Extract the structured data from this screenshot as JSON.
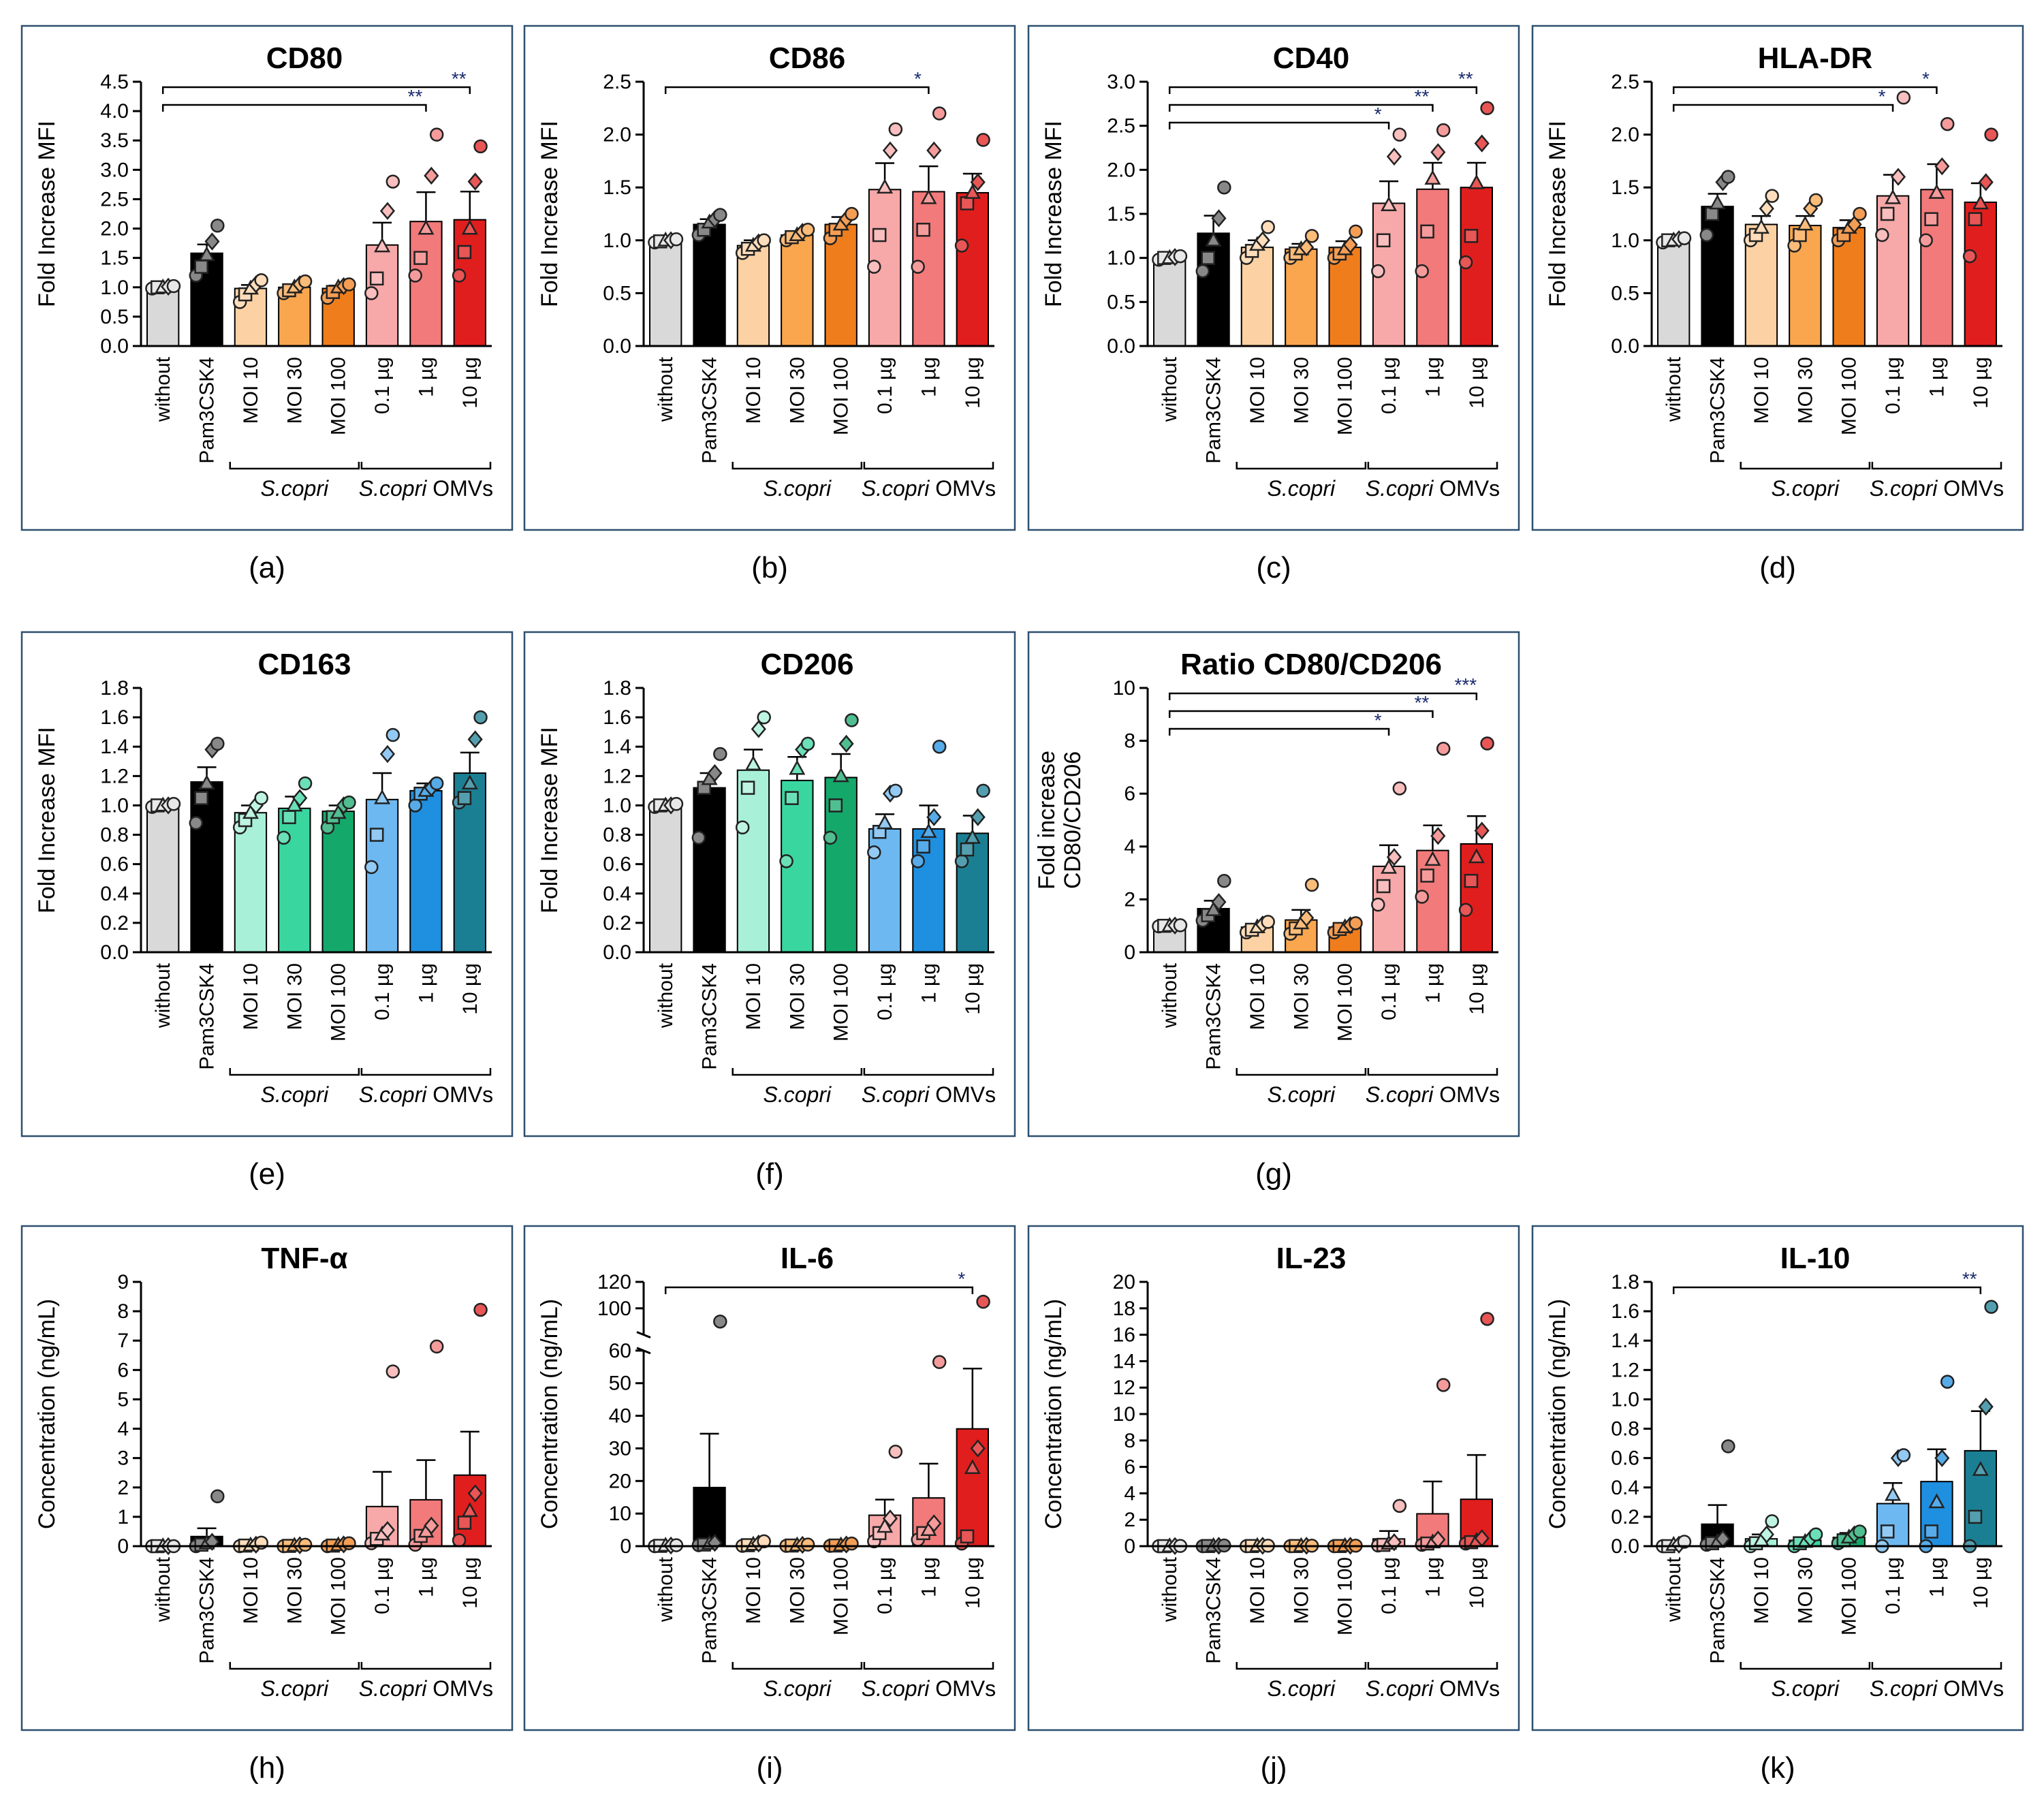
{
  "figure": {
    "categories": [
      "without",
      "Pam3CSK4",
      "MOI 10",
      "MOI 30",
      "MOI 100",
      "0.1 µg",
      "1 µg",
      "10 µg"
    ],
    "groups": [
      {
        "italic": "S.copri",
        "rest": ""
      },
      {
        "italic": "S.copri",
        "rest": " OMVs"
      }
    ]
  },
  "chart_data": [
    {
      "panel": "(a)",
      "type": "bar",
      "title": "CD80",
      "ylabel": [
        "Fold Increase MFI"
      ],
      "ylim": [
        0,
        4.5
      ],
      "yticks": [
        0,
        0.5,
        1.0,
        1.5,
        2.0,
        2.5,
        3.0,
        3.5,
        4.0,
        4.5
      ],
      "ytick_decimals": 1,
      "values": [
        1.0,
        1.58,
        0.98,
        1.0,
        0.98,
        1.72,
        2.12,
        2.15
      ],
      "errors": [
        0.02,
        0.15,
        0.06,
        0.04,
        0.05,
        0.38,
        0.5,
        0.48
      ],
      "colors": [
        "#d9d9d9",
        "#000000",
        "#fcd2a4",
        "#f9a64e",
        "#f07d1c",
        "#f7a8a8",
        "#f27a7a",
        "#e01e1e"
      ],
      "points": [
        [
          0.98,
          1.0,
          1.0,
          1.01,
          1.02
        ],
        [
          1.2,
          1.35,
          1.55,
          1.78,
          2.05
        ],
        [
          0.75,
          0.88,
          0.98,
          1.05,
          1.12
        ],
        [
          0.9,
          0.95,
          1.0,
          1.05,
          1.1
        ],
        [
          0.82,
          0.92,
          1.0,
          1.02,
          1.05
        ],
        [
          0.9,
          1.15,
          1.7,
          2.3,
          2.8
        ],
        [
          1.2,
          1.5,
          2.0,
          2.9,
          3.6
        ],
        [
          1.2,
          1.6,
          2.0,
          2.8,
          3.4
        ]
      ],
      "significance": [
        {
          "from": 0,
          "to": 6,
          "label": "**"
        },
        {
          "from": 0,
          "to": 7,
          "label": "**"
        }
      ]
    },
    {
      "panel": "(b)",
      "type": "bar",
      "title": "CD86",
      "ylabel": [
        "Fold Increase MFI"
      ],
      "ylim": [
        0,
        2.5
      ],
      "yticks": [
        0,
        0.5,
        1.0,
        1.5,
        2.0,
        2.5
      ],
      "ytick_decimals": 1,
      "values": [
        1.0,
        1.15,
        0.95,
        1.05,
        1.15,
        1.48,
        1.46,
        1.45
      ],
      "errors": [
        0.02,
        0.05,
        0.05,
        0.03,
        0.07,
        0.25,
        0.24,
        0.18
      ],
      "colors": [
        "#d9d9d9",
        "#000000",
        "#fcd2a4",
        "#f9a64e",
        "#f07d1c",
        "#f7a8a8",
        "#f27a7a",
        "#e01e1e"
      ],
      "points": [
        [
          0.98,
          0.99,
          1.0,
          1.0,
          1.01
        ],
        [
          1.05,
          1.1,
          1.17,
          1.2,
          1.24
        ],
        [
          0.88,
          0.92,
          0.95,
          0.98,
          1.0
        ],
        [
          1.0,
          1.03,
          1.05,
          1.08,
          1.1
        ],
        [
          1.02,
          1.1,
          1.15,
          1.2,
          1.25
        ],
        [
          0.75,
          1.05,
          1.5,
          1.85,
          2.05
        ],
        [
          0.75,
          1.1,
          1.4,
          1.85,
          2.2
        ],
        [
          0.95,
          1.35,
          1.45,
          1.55,
          1.95
        ]
      ],
      "significance": [
        {
          "from": 0,
          "to": 6,
          "label": "*"
        }
      ]
    },
    {
      "panel": "(c)",
      "type": "bar",
      "title": "CD40",
      "ylabel": [
        "Fold Increase MFI"
      ],
      "ylim": [
        0,
        3.0
      ],
      "yticks": [
        0,
        0.5,
        1.0,
        1.5,
        2.0,
        2.5,
        3.0
      ],
      "ytick_decimals": 1,
      "values": [
        1.0,
        1.28,
        1.12,
        1.1,
        1.12,
        1.62,
        1.78,
        1.8
      ],
      "errors": [
        0.02,
        0.2,
        0.08,
        0.06,
        0.07,
        0.25,
        0.3,
        0.28
      ],
      "colors": [
        "#d9d9d9",
        "#000000",
        "#fcd2a4",
        "#f9a64e",
        "#f07d1c",
        "#f7a8a8",
        "#f27a7a",
        "#e01e1e"
      ],
      "points": [
        [
          0.98,
          1.0,
          1.0,
          1.01,
          1.02
        ],
        [
          0.85,
          1.0,
          1.2,
          1.45,
          1.8
        ],
        [
          1.0,
          1.08,
          1.15,
          1.2,
          1.35
        ],
        [
          1.0,
          1.05,
          1.1,
          1.12,
          1.25
        ],
        [
          1.0,
          1.05,
          1.1,
          1.15,
          1.3
        ],
        [
          0.85,
          1.2,
          1.6,
          2.15,
          2.4
        ],
        [
          0.85,
          1.3,
          1.9,
          2.2,
          2.45
        ],
        [
          0.95,
          1.25,
          1.85,
          2.3,
          2.7
        ]
      ],
      "significance": [
        {
          "from": 0,
          "to": 5,
          "label": "*"
        },
        {
          "from": 0,
          "to": 6,
          "label": "**"
        },
        {
          "from": 0,
          "to": 7,
          "label": "**"
        }
      ]
    },
    {
      "panel": "(d)",
      "type": "bar",
      "title": "HLA-DR",
      "ylabel": [
        "Fold Increase MFI"
      ],
      "ylim": [
        0,
        2.5
      ],
      "yticks": [
        0,
        0.5,
        1.0,
        1.5,
        2.0,
        2.5
      ],
      "ytick_decimals": 1,
      "values": [
        1.0,
        1.32,
        1.15,
        1.14,
        1.12,
        1.42,
        1.48,
        1.36
      ],
      "errors": [
        0.02,
        0.12,
        0.08,
        0.09,
        0.07,
        0.2,
        0.24,
        0.18
      ],
      "colors": [
        "#d9d9d9",
        "#000000",
        "#fcd2a4",
        "#f9a64e",
        "#f07d1c",
        "#f7a8a8",
        "#f27a7a",
        "#e01e1e"
      ],
      "points": [
        [
          0.98,
          1.0,
          1.0,
          1.01,
          1.02
        ],
        [
          1.05,
          1.25,
          1.35,
          1.55,
          1.6
        ],
        [
          1.0,
          1.05,
          1.12,
          1.3,
          1.42
        ],
        [
          0.95,
          1.05,
          1.15,
          1.3,
          1.38
        ],
        [
          1.0,
          1.05,
          1.12,
          1.15,
          1.25
        ],
        [
          1.05,
          1.25,
          1.4,
          1.6,
          2.35
        ],
        [
          1.0,
          1.2,
          1.45,
          1.7,
          2.1
        ],
        [
          0.85,
          1.2,
          1.35,
          1.55,
          2.0
        ]
      ],
      "significance": [
        {
          "from": 0,
          "to": 5,
          "label": "*"
        },
        {
          "from": 0,
          "to": 6,
          "label": "*"
        }
      ]
    },
    {
      "panel": "(e)",
      "type": "bar",
      "title": "CD163",
      "ylabel": [
        "Fold Increase MFI"
      ],
      "ylim": [
        0,
        1.8
      ],
      "yticks": [
        0,
        0.2,
        0.4,
        0.6,
        0.8,
        1.0,
        1.2,
        1.4,
        1.6,
        1.8
      ],
      "ytick_decimals": 1,
      "values": [
        1.0,
        1.16,
        0.95,
        0.98,
        0.96,
        1.04,
        1.1,
        1.22
      ],
      "errors": [
        0.01,
        0.1,
        0.05,
        0.08,
        0.04,
        0.18,
        0.05,
        0.14
      ],
      "colors": [
        "#d9d9d9",
        "#000000",
        "#a8f0d8",
        "#3ad6a0",
        "#15a86b",
        "#6db8f0",
        "#1f8fe0",
        "#1b7f94"
      ],
      "points": [
        [
          0.99,
          1.0,
          1.0,
          1.0,
          1.01
        ],
        [
          0.88,
          1.05,
          1.15,
          1.38,
          1.42
        ],
        [
          0.85,
          0.9,
          0.95,
          1.0,
          1.05
        ],
        [
          0.78,
          0.92,
          1.0,
          1.05,
          1.15
        ],
        [
          0.85,
          0.92,
          0.95,
          1.0,
          1.02
        ],
        [
          0.58,
          0.8,
          1.05,
          1.35,
          1.48
        ],
        [
          1.0,
          1.08,
          1.1,
          1.12,
          1.15
        ],
        [
          1.02,
          1.05,
          1.15,
          1.45,
          1.6
        ]
      ],
      "significance": []
    },
    {
      "panel": "(f)",
      "type": "bar",
      "title": "CD206",
      "ylabel": [
        "Fold Increase MFI"
      ],
      "ylim": [
        0,
        1.8
      ],
      "yticks": [
        0,
        0.2,
        0.4,
        0.6,
        0.8,
        1.0,
        1.2,
        1.4,
        1.6,
        1.8
      ],
      "ytick_decimals": 1,
      "values": [
        1.0,
        1.12,
        1.24,
        1.17,
        1.19,
        0.84,
        0.84,
        0.81
      ],
      "errors": [
        0.01,
        0.1,
        0.14,
        0.16,
        0.16,
        0.1,
        0.16,
        0.12
      ],
      "colors": [
        "#d9d9d9",
        "#000000",
        "#a8f0d8",
        "#3ad6a0",
        "#15a86b",
        "#6db8f0",
        "#1f8fe0",
        "#1b7f94"
      ],
      "points": [
        [
          0.99,
          1.0,
          1.0,
          1.0,
          1.01
        ],
        [
          0.78,
          1.12,
          1.18,
          1.22,
          1.35
        ],
        [
          0.85,
          1.12,
          1.28,
          1.52,
          1.6
        ],
        [
          0.62,
          1.05,
          1.25,
          1.38,
          1.42
        ],
        [
          0.78,
          1.0,
          1.2,
          1.42,
          1.58
        ],
        [
          0.68,
          0.82,
          0.88,
          1.08,
          1.1
        ],
        [
          0.62,
          0.72,
          0.82,
          0.92,
          1.4
        ],
        [
          0.62,
          0.7,
          0.78,
          0.92,
          1.1
        ]
      ],
      "significance": []
    },
    {
      "panel": "(g)",
      "type": "bar",
      "title": "Ratio CD80/CD206",
      "ylabel": [
        "Fold increase",
        "CD80/CD206"
      ],
      "ylim": [
        0,
        10
      ],
      "yticks": [
        0,
        2,
        4,
        6,
        8,
        10
      ],
      "ytick_decimals": 0,
      "values": [
        1.0,
        1.65,
        0.95,
        1.22,
        0.95,
        3.25,
        3.85,
        4.1
      ],
      "errors": [
        0.02,
        0.3,
        0.1,
        0.38,
        0.12,
        0.8,
        0.95,
        1.05
      ],
      "colors": [
        "#d9d9d9",
        "#000000",
        "#fcd2a4",
        "#f9a64e",
        "#f07d1c",
        "#f7a8a8",
        "#f27a7a",
        "#e01e1e"
      ],
      "points": [
        [
          0.98,
          1.0,
          1.0,
          1.01,
          1.02
        ],
        [
          1.2,
          1.4,
          1.6,
          1.9,
          2.7
        ],
        [
          0.75,
          0.85,
          0.95,
          1.05,
          1.15
        ],
        [
          0.7,
          0.9,
          1.1,
          1.3,
          2.55
        ],
        [
          0.75,
          0.88,
          0.95,
          1.02,
          1.1
        ],
        [
          1.8,
          2.5,
          3.2,
          3.6,
          6.2
        ],
        [
          2.1,
          2.9,
          3.5,
          4.4,
          7.7
        ],
        [
          1.6,
          2.7,
          3.6,
          4.6,
          7.9
        ]
      ],
      "significance": [
        {
          "from": 0,
          "to": 5,
          "label": "*"
        },
        {
          "from": 0,
          "to": 6,
          "label": "**"
        },
        {
          "from": 0,
          "to": 7,
          "label": "***"
        }
      ]
    },
    {
      "panel": "(h)",
      "type": "bar",
      "title": "TNF-α",
      "ylabel": [
        "Concentration (ng/mL)"
      ],
      "ylim": [
        0,
        9
      ],
      "yticks": [
        0,
        1,
        2,
        3,
        4,
        5,
        6,
        7,
        8,
        9
      ],
      "ytick_decimals": 0,
      "values": [
        0.0,
        0.33,
        0.03,
        0.02,
        0.04,
        1.35,
        1.58,
        2.42
      ],
      "errors": [
        0.01,
        0.28,
        0.02,
        0.01,
        0.02,
        1.18,
        1.35,
        1.48
      ],
      "colors": [
        "#d9d9d9",
        "#000000",
        "#fcd2a4",
        "#f9a64e",
        "#f07d1c",
        "#f7a8a8",
        "#f27a7a",
        "#e01e1e"
      ],
      "points": [
        [
          0.0,
          0.0,
          0.0,
          0.0,
          0.0
        ],
        [
          0.0,
          0.05,
          0.1,
          0.15,
          1.7
        ],
        [
          0.0,
          0.02,
          0.03,
          0.05,
          0.12
        ],
        [
          0.0,
          0.01,
          0.02,
          0.03,
          0.05
        ],
        [
          0.0,
          0.02,
          0.04,
          0.06,
          0.1
        ],
        [
          0.1,
          0.25,
          0.4,
          0.55,
          5.95
        ],
        [
          0.05,
          0.35,
          0.5,
          0.7,
          6.8
        ],
        [
          0.2,
          0.8,
          1.2,
          1.8,
          8.05
        ]
      ],
      "significance": []
    },
    {
      "panel": "(i)",
      "type": "bar",
      "title": "IL-6",
      "ylabel": [
        "Concentration (ng/mL)"
      ],
      "ylim": [
        0,
        120
      ],
      "yticks": [
        0,
        10,
        20,
        30,
        40,
        50,
        60,
        100,
        120
      ],
      "ytick_decimals": 0,
      "axis_break": {
        "lower_max": 60,
        "upper_min": 80
      },
      "values": [
        0.2,
        18.0,
        0.5,
        0.3,
        0.4,
        9.5,
        14.8,
        36.0
      ],
      "errors": [
        0.1,
        16.5,
        0.4,
        0.2,
        0.3,
        4.8,
        10.5,
        18.5
      ],
      "colors": [
        "#d9d9d9",
        "#000000",
        "#fcd2a4",
        "#f9a64e",
        "#f07d1c",
        "#f7a8a8",
        "#f27a7a",
        "#e01e1e"
      ],
      "points": [
        [
          0.0,
          0.1,
          0.2,
          0.2,
          0.3
        ],
        [
          0.3,
          0.5,
          0.8,
          1.0,
          90.0
        ],
        [
          0.1,
          0.3,
          0.5,
          0.8,
          1.5
        ],
        [
          0.1,
          0.2,
          0.3,
          0.4,
          0.5
        ],
        [
          0.1,
          0.2,
          0.3,
          0.5,
          0.8
        ],
        [
          1.5,
          4.0,
          6.0,
          8.5,
          29.0
        ],
        [
          2.0,
          4.0,
          5.0,
          7.0,
          56.5
        ],
        [
          0.8,
          3.0,
          24.0,
          30.0,
          105.0
        ]
      ],
      "significance": [
        {
          "from": 0,
          "to": 7,
          "label": "*"
        }
      ]
    },
    {
      "panel": "(j)",
      "type": "bar",
      "title": "IL-23",
      "ylabel": [
        "Concentration (ng/mL)"
      ],
      "ylim": [
        0,
        20
      ],
      "yticks": [
        0,
        2,
        4,
        6,
        8,
        10,
        12,
        14,
        16,
        18,
        20
      ],
      "ytick_decimals": 0,
      "values": [
        0.02,
        0.03,
        0.02,
        0.02,
        0.02,
        0.55,
        2.45,
        3.55
      ],
      "errors": [
        0.01,
        0.02,
        0.01,
        0.01,
        0.01,
        0.6,
        2.45,
        3.35
      ],
      "colors": [
        "#d9d9d9",
        "#000000",
        "#fcd2a4",
        "#f9a64e",
        "#f07d1c",
        "#f7a8a8",
        "#f27a7a",
        "#e01e1e"
      ],
      "points": [
        [
          0.0,
          0.0,
          0.0,
          0.01,
          0.02
        ],
        [
          0.0,
          0.01,
          0.02,
          0.03,
          0.05
        ],
        [
          0.0,
          0.01,
          0.02,
          0.03,
          0.04
        ],
        [
          0.0,
          0.01,
          0.02,
          0.03,
          0.04
        ],
        [
          0.0,
          0.01,
          0.02,
          0.03,
          0.04
        ],
        [
          0.05,
          0.1,
          0.2,
          0.3,
          3.05
        ],
        [
          0.1,
          0.2,
          0.3,
          0.5,
          12.2
        ],
        [
          0.2,
          0.3,
          0.4,
          0.6,
          17.2
        ]
      ],
      "significance": []
    },
    {
      "panel": "(k)",
      "type": "bar",
      "title": "IL-10",
      "ylabel": [
        "Concentration (ng/mL)"
      ],
      "ylim": [
        0,
        1.8
      ],
      "yticks": [
        0,
        0.2,
        0.4,
        0.6,
        0.8,
        1.0,
        1.2,
        1.4,
        1.6,
        1.8
      ],
      "ytick_decimals": 1,
      "values": [
        0.01,
        0.15,
        0.05,
        0.04,
        0.06,
        0.29,
        0.44,
        0.65
      ],
      "errors": [
        0.01,
        0.13,
        0.03,
        0.02,
        0.03,
        0.14,
        0.22,
        0.27
      ],
      "colors": [
        "#d9d9d9",
        "#000000",
        "#a8f0d8",
        "#3ad6a0",
        "#15a86b",
        "#6db8f0",
        "#1f8fe0",
        "#1b7f94"
      ],
      "points": [
        [
          0.0,
          0.0,
          0.01,
          0.01,
          0.03
        ],
        [
          0.01,
          0.02,
          0.03,
          0.05,
          0.68
        ],
        [
          0.0,
          0.02,
          0.04,
          0.08,
          0.17
        ],
        [
          0.0,
          0.02,
          0.03,
          0.05,
          0.08
        ],
        [
          0.02,
          0.04,
          0.06,
          0.08,
          0.1
        ],
        [
          0.0,
          0.1,
          0.35,
          0.6,
          0.62
        ],
        [
          0.0,
          0.1,
          0.3,
          0.6,
          1.12
        ],
        [
          0.0,
          0.2,
          0.52,
          0.95,
          1.63
        ]
      ],
      "significance": [
        {
          "from": 0,
          "to": 7,
          "label": "**"
        }
      ]
    }
  ]
}
